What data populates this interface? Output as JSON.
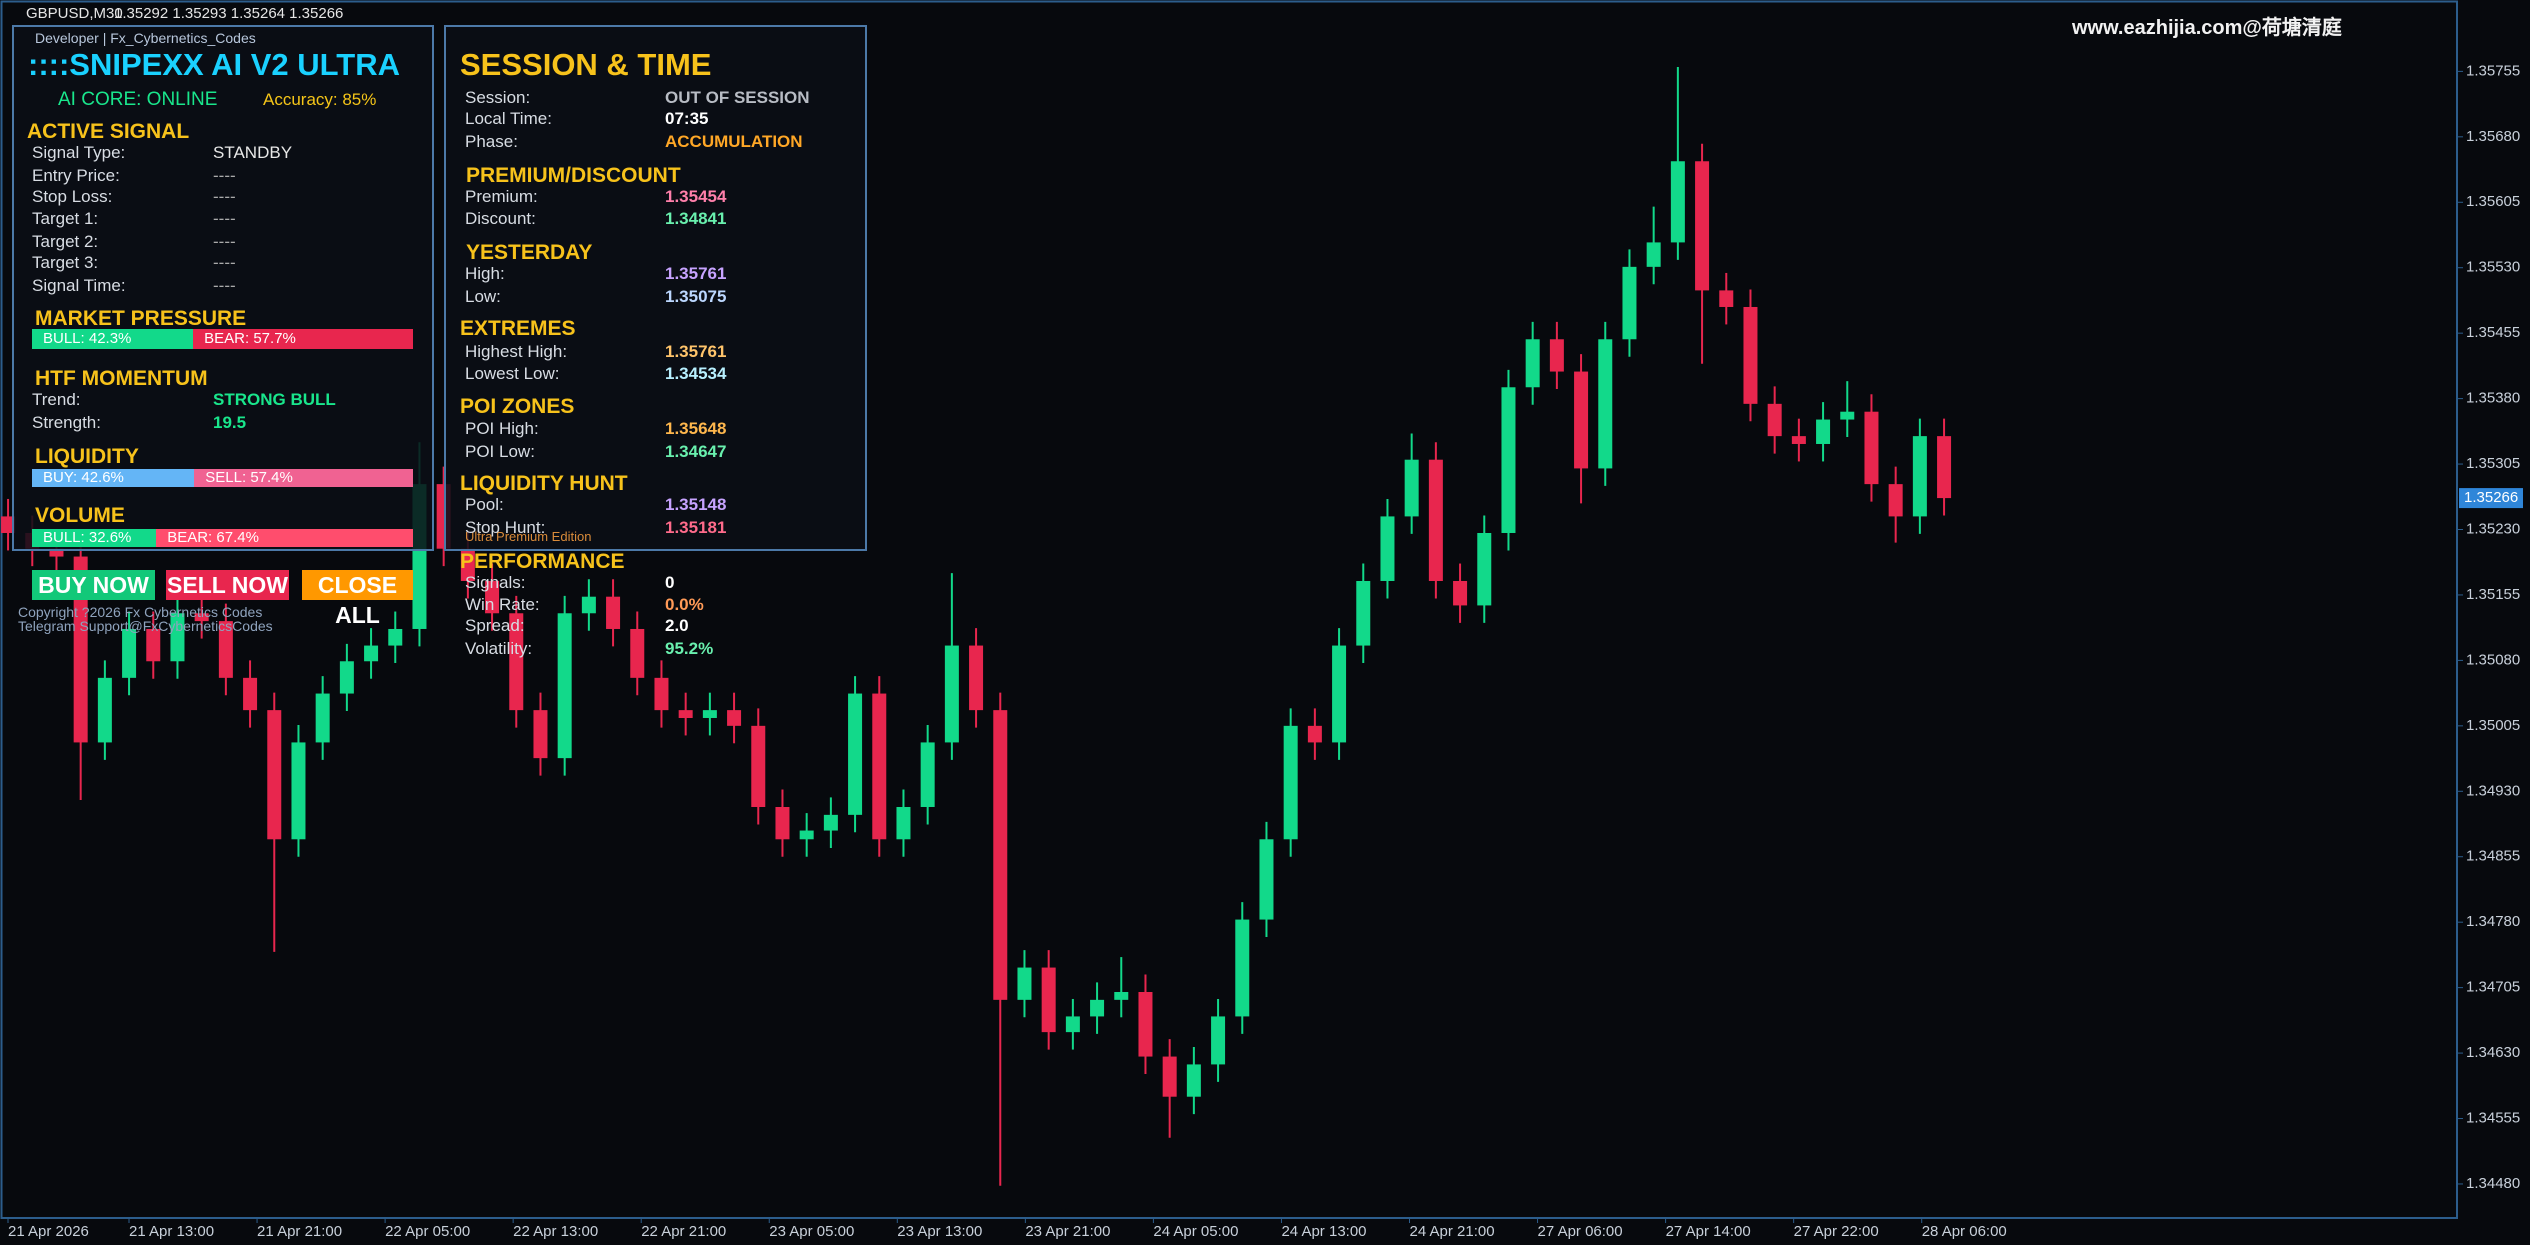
{
  "header": {
    "symbol": "GBPUSD,M30",
    "quote": "1.35292 1.35293 1.35264 1.35266"
  },
  "watermark": "www.eazhijia.com@荷塘清庭",
  "left_panel": {
    "developer": "Developer | Fx_Cybernetics_Codes",
    "title": "::::SNIPEXX AI V2 ULTRA",
    "ai_core": "AI CORE: ONLINE",
    "accuracy": "Accuracy: 85%",
    "active_signal": {
      "heading": "ACTIVE SIGNAL",
      "rows": [
        [
          "Signal Type:",
          "STANDBY"
        ],
        [
          "Entry Price:",
          "----"
        ],
        [
          "Stop Loss:",
          "----"
        ],
        [
          "Target 1:",
          "----"
        ],
        [
          "Target 2:",
          "----"
        ],
        [
          "Target 3:",
          "----"
        ],
        [
          "Signal Time:",
          "----"
        ]
      ]
    },
    "market_pressure": {
      "heading": "MARKET PRESSURE",
      "bull": {
        "value": 42.3,
        "label": "BULL: 42.3%"
      },
      "bear": {
        "value": 57.7,
        "label": "BEAR: 57.7%"
      }
    },
    "htf_momentum": {
      "heading": "HTF MOMENTUM",
      "rows": [
        [
          "Trend:",
          "STRONG BULL"
        ],
        [
          "Strength:",
          "19.5"
        ]
      ]
    },
    "liquidity": {
      "heading": "LIQUIDITY",
      "buy": {
        "value": 42.6,
        "label": "BUY: 42.6%"
      },
      "sell": {
        "value": 57.4,
        "label": "SELL: 57.4%"
      }
    },
    "volume": {
      "heading": "VOLUME",
      "bull": {
        "value": 32.6,
        "label": "BULL: 32.6%"
      },
      "bear": {
        "value": 67.4,
        "label": "BEAR: 67.4%"
      }
    },
    "buttons": [
      "BUY NOW",
      "SELL NOW",
      "CLOSE ALL"
    ],
    "copyright": "Copyright ?2026 Fx Cybernetics Codes",
    "telegram": "Telegram Support@FxCyberneticsCodes"
  },
  "right_panel": {
    "title": "SESSION & TIME",
    "session": {
      "rows": [
        [
          "Session:",
          "OUT OF SESSION"
        ],
        [
          "Local Time:",
          "07:35"
        ],
        [
          "Phase:",
          "ACCUMULATION"
        ]
      ]
    },
    "premium_discount": {
      "heading": "PREMIUM/DISCOUNT",
      "rows": [
        [
          "Premium:",
          "1.35454"
        ],
        [
          "Discount:",
          "1.34841"
        ]
      ]
    },
    "yesterday": {
      "heading": "YESTERDAY",
      "rows": [
        [
          "High:",
          "1.35761"
        ],
        [
          "Low:",
          "1.35075"
        ]
      ]
    },
    "extremes": {
      "heading": "EXTREMES",
      "rows": [
        [
          "Highest High:",
          "1.35761"
        ],
        [
          "Lowest Low:",
          "1.34534"
        ]
      ]
    },
    "poi_zones": {
      "heading": "POI ZONES",
      "rows": [
        [
          "POI High:",
          "1.35648"
        ],
        [
          "POI Low:",
          "1.34647"
        ]
      ]
    },
    "liquidity_hunt": {
      "heading": "LIQUIDITY HUNT",
      "rows": [
        [
          "Pool:",
          "1.35148"
        ],
        [
          "Stop Hunt:",
          "1.35181"
        ]
      ]
    },
    "edition": "Ultra Premium Edition",
    "performance": {
      "heading": "PERFORMANCE",
      "rows": [
        [
          "Signals:",
          "0"
        ],
        [
          "Win Rate:",
          "0.0%"
        ],
        [
          "Spread:",
          "2.0"
        ],
        [
          "Volatility:",
          "95.2%"
        ]
      ]
    }
  },
  "chart_data": {
    "type": "candlestick",
    "x_labels": [
      "21 Apr 2026",
      "21 Apr 13:00",
      "21 Apr 21:00",
      "22 Apr 05:00",
      "22 Apr 13:00",
      "22 Apr 21:00",
      "23 Apr 05:00",
      "23 Apr 13:00",
      "23 Apr 21:00",
      "24 Apr 05:00",
      "24 Apr 13:00",
      "24 Apr 21:00",
      "27 Apr 06:00",
      "27 Apr 14:00",
      "27 Apr 22:00",
      "28 Apr 06:00"
    ],
    "ylim": [
      1.34441,
      1.35807
    ],
    "yticks": [
      1.35755,
      {
        "value": 1.3568,
        "label": "1.35680"
      },
      1.35605,
      {
        "value": 1.3553,
        "label": "1.35530"
      },
      1.35455,
      {
        "value": 1.3538,
        "label": "1.35380"
      },
      1.35305,
      {
        "value": 1.3523,
        "label": "1.35230"
      },
      1.35155,
      {
        "value": 1.3508,
        "label": "1.35080"
      },
      1.35005,
      {
        "value": 1.3493,
        "label": "1.34930"
      },
      1.34855,
      {
        "value": 1.3478,
        "label": "1.34780"
      },
      1.34705,
      {
        "value": 1.3463,
        "label": "1.34630"
      },
      1.34555,
      {
        "value": 1.3448,
        "label": "1.34480"
      }
    ],
    "current_price": 1.35266,
    "up_color": "#12d98a",
    "down_color": "#e8264e",
    "open": [
      1.35245,
      1.35226,
      1.35208,
      1.35199,
      1.34986,
      1.3506,
      1.35116,
      1.35079,
      1.35134,
      1.35125,
      1.3506,
      1.35023,
      1.34875,
      1.34986,
      1.35042,
      1.35079,
      1.35097,
      1.35116,
      1.35282,
      1.35208,
      1.35171,
      1.35134,
      1.35023,
      1.34968,
      1.35134,
      1.35153,
      1.35116,
      1.3506,
      1.35023,
      1.35014,
      1.35023,
      1.35005,
      1.34912,
      1.34875,
      1.34885,
      1.34903,
      1.35042,
      1.34875,
      1.34912,
      1.34986,
      1.35097,
      1.35023,
      1.34691,
      1.34728,
      1.34654,
      1.34672,
      1.34691,
      1.347,
      1.34626,
      1.3458,
      1.34617,
      1.34672,
      1.34783,
      1.34875,
      1.35005,
      1.34986,
      1.35097,
      1.35171,
      1.35245,
      1.3531,
      1.35171,
      1.35143,
      1.35226,
      1.35393,
      1.35448,
      1.35411,
      1.353,
      1.35448,
      1.35531,
      1.35559,
      1.35652,
      1.35504,
      1.35485,
      1.35374,
      1.35337,
      1.35328,
      1.35356,
      1.35365,
      1.35282,
      1.35245,
      1.35337
    ],
    "high": [
      1.35265,
      1.35246,
      1.35228,
      1.35219,
      1.3508,
      1.35136,
      1.35136,
      1.35154,
      1.35154,
      1.35145,
      1.3508,
      1.35043,
      1.35006,
      1.35062,
      1.35099,
      1.35117,
      1.35136,
      1.3533,
      1.35302,
      1.35228,
      1.35191,
      1.35154,
      1.35043,
      1.35154,
      1.35173,
      1.35173,
      1.35136,
      1.3508,
      1.35043,
      1.35043,
      1.35043,
      1.35025,
      1.34932,
      1.34905,
      1.34923,
      1.35062,
      1.35062,
      1.34932,
      1.35006,
      1.3518,
      1.35117,
      1.35043,
      1.34748,
      1.34748,
      1.34692,
      1.34711,
      1.3474,
      1.3472,
      1.34646,
      1.34637,
      1.34692,
      1.34803,
      1.34895,
      1.35025,
      1.35025,
      1.35117,
      1.35191,
      1.35265,
      1.3534,
      1.3533,
      1.35191,
      1.35246,
      1.35413,
      1.35468,
      1.35468,
      1.35431,
      1.35468,
      1.35551,
      1.356,
      1.3576,
      1.35672,
      1.35524,
      1.35505,
      1.35394,
      1.35357,
      1.35376,
      1.354,
      1.35385,
      1.35302,
      1.35357,
      1.35357
    ],
    "low": [
      1.35206,
      1.35188,
      1.35179,
      1.3492,
      1.34966,
      1.3504,
      1.35059,
      1.35059,
      1.35105,
      1.3504,
      1.35003,
      1.34746,
      1.34855,
      1.34966,
      1.35022,
      1.35059,
      1.35077,
      1.35096,
      1.35188,
      1.35151,
      1.35114,
      1.35003,
      1.34948,
      1.34948,
      1.35114,
      1.35096,
      1.3504,
      1.35003,
      1.34994,
      1.34994,
      1.34985,
      1.34892,
      1.34855,
      1.34855,
      1.34865,
      1.34883,
      1.34855,
      1.34855,
      1.34892,
      1.34966,
      1.35003,
      1.34478,
      1.34671,
      1.34634,
      1.34634,
      1.34652,
      1.34671,
      1.34606,
      1.34533,
      1.3456,
      1.34597,
      1.34652,
      1.34763,
      1.34855,
      1.34966,
      1.34966,
      1.35077,
      1.35151,
      1.35225,
      1.35151,
      1.35123,
      1.35123,
      1.35206,
      1.35373,
      1.35391,
      1.3526,
      1.3528,
      1.35428,
      1.35511,
      1.35539,
      1.3542,
      1.35465,
      1.35354,
      1.35317,
      1.35308,
      1.35308,
      1.35336,
      1.35262,
      1.35215,
      1.35225,
      1.35246
    ],
    "close": [
      1.35226,
      1.35208,
      1.35199,
      1.34986,
      1.3506,
      1.35116,
      1.35079,
      1.35134,
      1.35125,
      1.3506,
      1.35023,
      1.34875,
      1.34986,
      1.35042,
      1.35079,
      1.35097,
      1.35116,
      1.35282,
      1.35208,
      1.35171,
      1.35134,
      1.35023,
      1.34968,
      1.35134,
      1.35153,
      1.35116,
      1.3506,
      1.35023,
      1.35014,
      1.35023,
      1.35005,
      1.34912,
      1.34875,
      1.34885,
      1.34903,
      1.35042,
      1.34875,
      1.34912,
      1.34986,
      1.35097,
      1.35023,
      1.34691,
      1.34728,
      1.34654,
      1.34672,
      1.34691,
      1.347,
      1.34626,
      1.3458,
      1.34617,
      1.34672,
      1.34783,
      1.34875,
      1.35005,
      1.34986,
      1.35097,
      1.35171,
      1.35245,
      1.3531,
      1.35171,
      1.35143,
      1.35226,
      1.35393,
      1.35448,
      1.35411,
      1.353,
      1.35448,
      1.35531,
      1.35559,
      1.35652,
      1.35504,
      1.35485,
      1.35374,
      1.35337,
      1.35328,
      1.35356,
      1.35365,
      1.35282,
      1.35245,
      1.35337,
      1.35266
    ]
  }
}
